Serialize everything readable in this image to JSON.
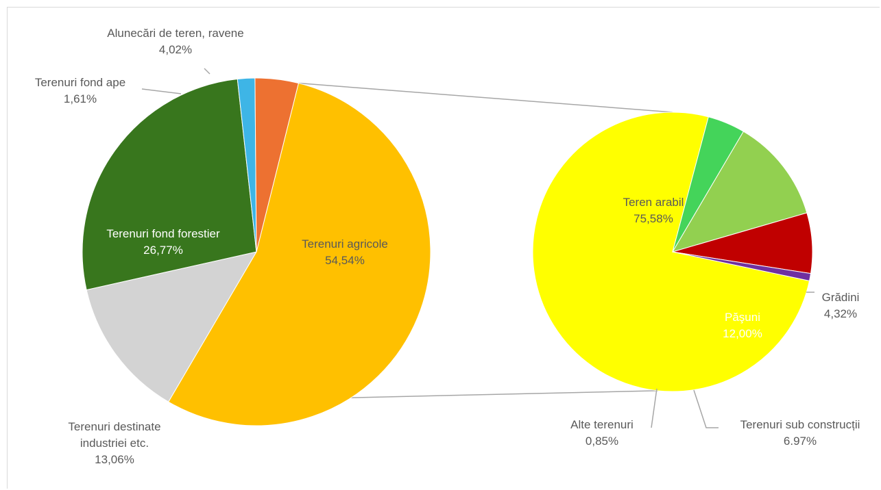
{
  "chart_data": [
    {
      "type": "pie",
      "title": "",
      "slices": [
        {
          "label": "Terenuri agricole",
          "value_label": "54,54%",
          "value": 54.54,
          "color": "#ffc000"
        },
        {
          "label": "Terenuri destinate industriei etc.",
          "value_label": "13,06%",
          "value": 13.06,
          "color": "#d3d3d3"
        },
        {
          "label": "Terenuri fond forestier",
          "value_label": "26,77%",
          "value": 26.77,
          "color": "#38761d"
        },
        {
          "label": "Terenuri fond ape",
          "value_label": "1,61%",
          "value": 1.61,
          "color": "#3eb5e6"
        },
        {
          "label": "Alunecări de teren, ravene",
          "value_label": "4,02%",
          "value": 4.02,
          "color": "#ed7131"
        }
      ]
    },
    {
      "type": "pie",
      "title": "",
      "slices": [
        {
          "label": "Teren arabil",
          "value_label": "75,58%",
          "value": 75.58,
          "color": "#ffff00"
        },
        {
          "label": "Grădini",
          "value_label": "4,32%",
          "value": 4.32,
          "color": "#44d45a"
        },
        {
          "label": "Păşuni",
          "value_label": "12,00%",
          "value": 12.0,
          "color": "#92d050"
        },
        {
          "label": "Terenuri sub construcții",
          "value_label": "6.97%",
          "value": 6.97,
          "color": "#c00000"
        },
        {
          "label": "Alte terenuri",
          "value_label": "0,85%",
          "value": 0.85,
          "color": "#7030a0"
        }
      ]
    }
  ]
}
